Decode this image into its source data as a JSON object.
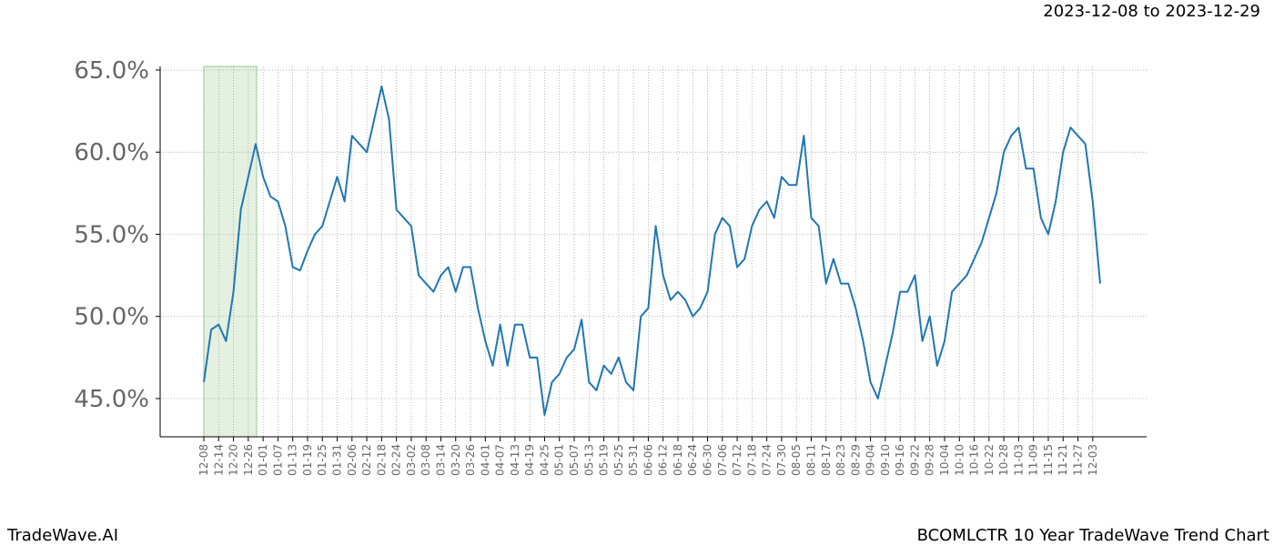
{
  "header": "2023-12-08 to 2023-12-29",
  "footer_left": "TradeWave.AI",
  "footer_right": "BCOMLCTR 10 Year TradeWave Trend Chart",
  "chart_data": {
    "type": "line",
    "color": "#1f77b4",
    "grid": true,
    "categories": [
      "12-08",
      null,
      "12-14",
      null,
      "12-20",
      null,
      "12-26",
      null,
      "01-01",
      null,
      "01-07",
      null,
      "01-13",
      null,
      "01-19",
      null,
      "01-25",
      null,
      "01-31",
      null,
      "02-06",
      null,
      "02-12",
      null,
      "02-18",
      null,
      "02-24",
      null,
      "03-02",
      null,
      "03-08",
      null,
      "03-14",
      null,
      "03-20",
      null,
      "03-26",
      null,
      "04-01",
      null,
      "04-07",
      null,
      "04-13",
      null,
      "04-19",
      null,
      "04-25",
      null,
      "05-01",
      null,
      "05-07",
      null,
      "05-13",
      null,
      "05-19",
      null,
      "05-25",
      null,
      "05-31",
      null,
      "06-06",
      null,
      "06-12",
      null,
      "06-18",
      null,
      "06-24",
      null,
      "06-30",
      null,
      "07-06",
      null,
      "07-12",
      null,
      "07-18",
      null,
      "07-24",
      null,
      "07-30",
      null,
      "08-05",
      null,
      "08-11",
      null,
      "08-17",
      null,
      "08-23",
      null,
      "08-29",
      null,
      "09-04",
      null,
      "09-10",
      null,
      "09-16",
      null,
      "09-22",
      null,
      "09-28",
      null,
      "10-04",
      null,
      "10-10",
      null,
      "10-16",
      null,
      "10-22",
      null,
      "10-28",
      null,
      "11-03",
      null,
      "11-09",
      null,
      "11-15",
      null,
      "11-21",
      null,
      "11-27",
      null,
      "12-03",
      null
    ],
    "values": [
      46.0,
      49.2,
      49.5,
      48.5,
      51.5,
      56.5,
      58.5,
      60.5,
      58.5,
      57.3,
      57.0,
      55.5,
      53.0,
      52.8,
      54.0,
      55.0,
      55.5,
      57.0,
      58.5,
      57.0,
      61.0,
      60.5,
      60.0,
      62.0,
      64.0,
      62.0,
      56.5,
      56.0,
      55.5,
      52.5,
      52.0,
      51.5,
      52.5,
      53.0,
      51.5,
      53.0,
      53.0,
      50.5,
      48.5,
      47.0,
      49.5,
      47.0,
      49.5,
      49.5,
      47.5,
      47.5,
      44.0,
      46.0,
      46.5,
      47.5,
      48.0,
      49.8,
      46.0,
      45.5,
      47.0,
      46.5,
      47.5,
      46.0,
      45.5,
      50.0,
      50.5,
      55.5,
      52.5,
      51.0,
      51.5,
      51.0,
      50.0,
      50.5,
      51.5,
      55.0,
      56.0,
      55.5,
      53.0,
      53.5,
      55.5,
      56.5,
      57.0,
      56.0,
      58.5,
      58.0,
      58.0,
      61.0,
      56.0,
      55.5,
      52.0,
      53.5,
      52.0,
      52.0,
      50.5,
      48.5,
      46.0,
      45.0,
      47.0,
      49.0,
      51.5,
      51.5,
      52.5,
      48.5,
      50.0,
      47.0,
      48.5,
      51.5,
      52.0,
      52.5,
      53.5,
      54.5,
      56.0,
      57.5,
      60.0,
      61.0,
      61.5,
      59.0,
      59.0,
      56.0,
      55.0,
      57.0,
      60.0,
      61.5,
      61.0,
      60.5,
      57.0,
      52.0
    ],
    "ylim": [
      42.67,
      65.22
    ],
    "yticks": [
      {
        "value": 45,
        "label": "45.0%"
      },
      {
        "value": 50,
        "label": "50.0%"
      },
      {
        "value": 55,
        "label": "55.0%"
      },
      {
        "value": 60,
        "label": "60.0%"
      },
      {
        "value": 65,
        "label": "65.0%"
      }
    ]
  }
}
